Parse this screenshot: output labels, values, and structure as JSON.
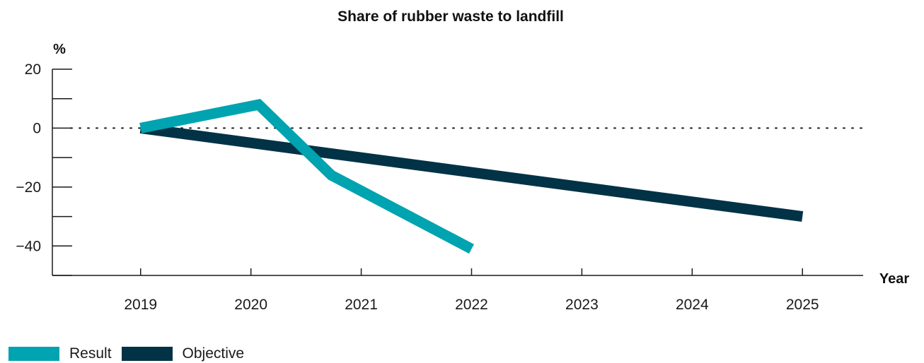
{
  "chart_data": {
    "type": "line",
    "title": "Share of rubber waste to landfill",
    "ylabel": "%",
    "xlabel": "Year",
    "x_ticks": [
      "2019",
      "2020",
      "2021",
      "2022",
      "2023",
      "2024",
      "2025"
    ],
    "y_ticks": [
      20,
      0,
      -20,
      -40
    ],
    "ylim": [
      -50,
      20
    ],
    "xlim": [
      2018.2,
      2025.55
    ],
    "reference_line": {
      "y": 0,
      "style": "dotted"
    },
    "grid": false,
    "legend_position": "bottom-left",
    "series": [
      {
        "name": "Result",
        "color": "#00a3b0",
        "points": [
          {
            "x": 2019.0,
            "y": 0
          },
          {
            "x": 2020.07,
            "y": 8
          },
          {
            "x": 2020.73,
            "y": -16
          },
          {
            "x": 2022.0,
            "y": -41
          }
        ]
      },
      {
        "name": "Objective",
        "color": "#023246",
        "points": [
          {
            "x": 2019.0,
            "y": 0
          },
          {
            "x": 2025.0,
            "y": -30
          }
        ]
      }
    ]
  },
  "legend": {
    "items": [
      {
        "label": "Result",
        "color": "#00a3b0"
      },
      {
        "label": "Objective",
        "color": "#023246"
      }
    ]
  }
}
